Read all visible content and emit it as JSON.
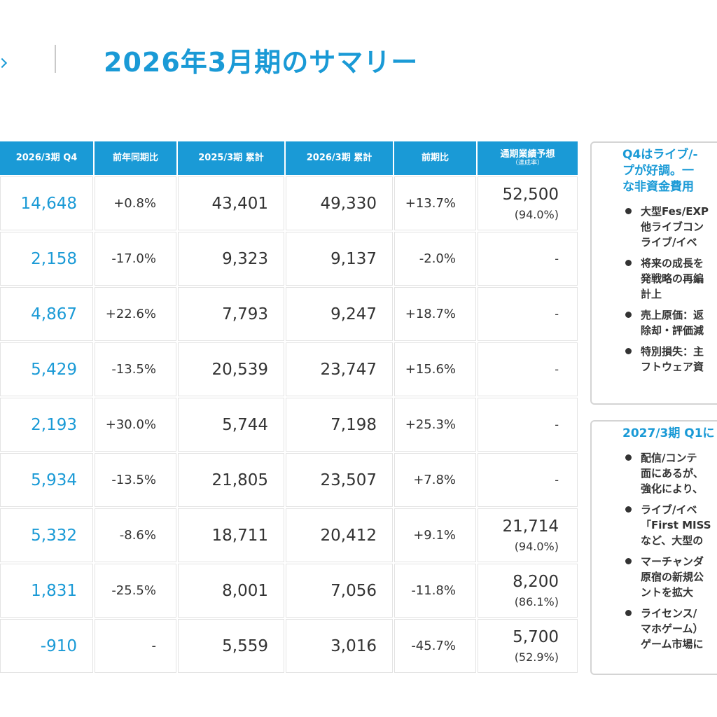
{
  "page_title": "2026年3月期のサマリー",
  "table": {
    "headers": [
      {
        "label": "2026/3期 Q4",
        "sub": ""
      },
      {
        "label": "前年同期比",
        "sub": ""
      },
      {
        "label": "2025/3期 累計",
        "sub": ""
      },
      {
        "label": "2026/3期 累計",
        "sub": ""
      },
      {
        "label": "前期比",
        "sub": ""
      },
      {
        "label": "通期業績予想",
        "sub": "（達成率）"
      }
    ],
    "rows": [
      {
        "q4": "14,648",
        "yoy": "+0.8%",
        "cum25": "43,401",
        "cum26": "49,330",
        "pp": "+13.7%",
        "fy": "52,500",
        "rate": "(94.0%)"
      },
      {
        "q4": "2,158",
        "yoy": "-17.0%",
        "cum25": "9,323",
        "cum26": "9,137",
        "pp": "-2.0%",
        "fy": "-",
        "rate": ""
      },
      {
        "q4": "4,867",
        "yoy": "+22.6%",
        "cum25": "7,793",
        "cum26": "9,247",
        "pp": "+18.7%",
        "fy": "-",
        "rate": ""
      },
      {
        "q4": "5,429",
        "yoy": "-13.5%",
        "cum25": "20,539",
        "cum26": "23,747",
        "pp": "+15.6%",
        "fy": "-",
        "rate": ""
      },
      {
        "q4": "2,193",
        "yoy": "+30.0%",
        "cum25": "5,744",
        "cum26": "7,198",
        "pp": "+25.3%",
        "fy": "-",
        "rate": ""
      },
      {
        "q4": "5,934",
        "yoy": "-13.5%",
        "cum25": "21,805",
        "cum26": "23,507",
        "pp": "+7.8%",
        "fy": "-",
        "rate": ""
      },
      {
        "q4": "5,332",
        "yoy": "-8.6%",
        "cum25": "18,711",
        "cum26": "20,412",
        "pp": "+9.1%",
        "fy": "21,714",
        "rate": "(94.0%)"
      },
      {
        "q4": "1,831",
        "yoy": "-25.5%",
        "cum25": "8,001",
        "cum26": "7,056",
        "pp": "-11.8%",
        "fy": "8,200",
        "rate": "(86.1%)"
      },
      {
        "q4": "-910",
        "yoy": "-",
        "cum25": "5,559",
        "cum26": "3,016",
        "pp": "-45.7%",
        "fy": "5,700",
        "rate": "(52.9%)"
      }
    ]
  },
  "panel1": {
    "title_lines": [
      "Q4はライブ/-",
      "プが好調。一",
      "な非資金費用"
    ],
    "bullets": [
      [
        "大型Fes/EXP",
        "他ライブコン",
        "ライブ/イベ"
      ],
      [
        "将来の成長を",
        "発戦略の再編",
        "計上"
      ],
      [
        "売上原価：返",
        "除却・評価減"
      ],
      [
        "特別損失：主",
        "フトウェア資"
      ]
    ]
  },
  "panel2": {
    "title_lines": [
      "2027/3期 Q1に"
    ],
    "bullets": [
      [
        "配信/コンテ",
        "面にあるが、",
        "強化により、"
      ],
      [
        "ライブ/イベ",
        "「First MISS",
        "など、大型の"
      ],
      [
        "マーチャンダ",
        "原宿の新規公",
        "ントを拡大"
      ],
      [
        "ライセンス/",
        "マホゲーム）",
        "ゲーム市場に"
      ]
    ]
  }
}
